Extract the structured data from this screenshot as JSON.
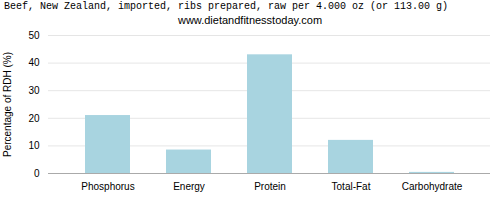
{
  "chart_data": {
    "type": "bar",
    "title": "Beef, New Zealand, imported, ribs prepared, raw per 4.000 oz (or 113.00 g)",
    "subtitle": "www.dietandfitnesstoday.com",
    "ylabel": "Percentage of RDH (%)",
    "categories": [
      "Phosphorus",
      "Energy",
      "Protein",
      "Total-Fat",
      "Carbohydrate"
    ],
    "values": [
      21,
      8.5,
      43,
      12,
      0.4
    ],
    "color": "#a8d4e0",
    "ylim": [
      0,
      50
    ],
    "yticks": [
      0,
      10,
      20,
      30,
      40,
      50
    ],
    "grid": true
  }
}
